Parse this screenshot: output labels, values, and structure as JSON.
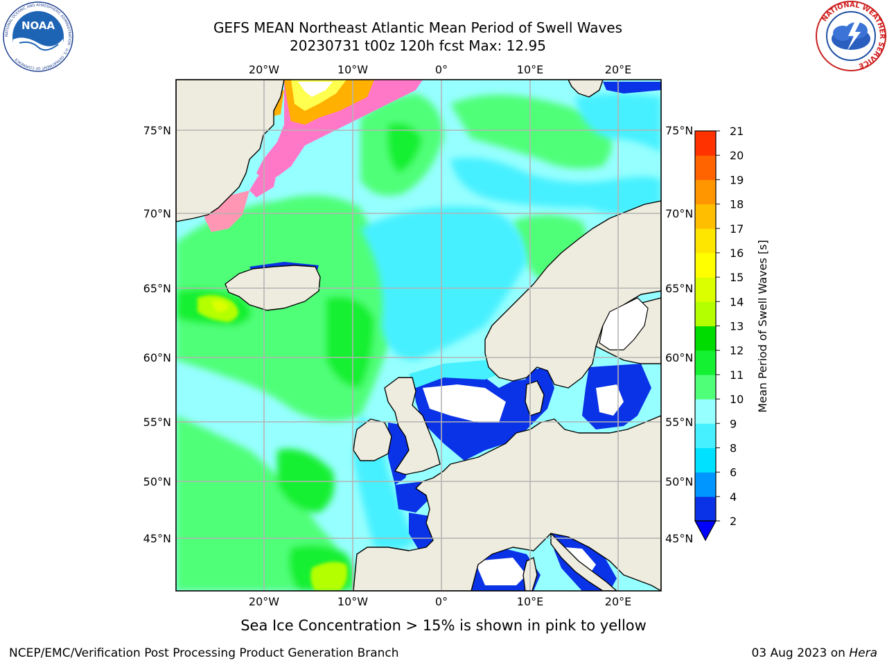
{
  "title_line1": "GEFS MEAN Northeast Atlantic Mean Period of Swell Waves",
  "title_line2": "20230731 t00z 120h fcst   Max: 12.95",
  "caption": "Sea Ice Concentration > 15% is shown in pink to yellow",
  "footer_left": "NCEP/EMC/Verification Post Processing Product Generation Branch",
  "footer_date": "03 Aug 2023 on ",
  "footer_machine": "Hera",
  "logos": {
    "noaa_text": "NOAA",
    "noaa_ring": "NATIONAL OCEANIC AND ATMOSPHERIC ADMINISTRATION · U.S. DEPARTMENT OF COMMERCE",
    "nws_ring": "NATIONAL WEATHER SERVICE"
  },
  "axes": {
    "lon_ticks": [
      "20°W",
      "10°W",
      "0°",
      "10°E",
      "20°E"
    ],
    "lat_ticks": [
      "75°N",
      "70°N",
      "65°N",
      "60°N",
      "55°N",
      "50°N",
      "45°N"
    ]
  },
  "colorbar": {
    "label": "Mean Period of Swell Waves [s]",
    "ticks": [
      "2",
      "4",
      "6",
      "8",
      "9",
      "10",
      "11",
      "12",
      "13",
      "14",
      "15",
      "16",
      "17",
      "18",
      "19",
      "20",
      "21"
    ],
    "colors": [
      "#0a32e6",
      "#0096ff",
      "#00e1ff",
      "#46f0ff",
      "#96ffff",
      "#50ff78",
      "#14f032",
      "#00dc00",
      "#b4ff00",
      "#dcff00",
      "#ffff00",
      "#ffe600",
      "#ffbe00",
      "#ff9600",
      "#ff6400",
      "#ff3200"
    ],
    "extend_color": "#0000ff"
  },
  "colors": {
    "land": "#eeecde",
    "grid": "#b4b4b4"
  }
}
